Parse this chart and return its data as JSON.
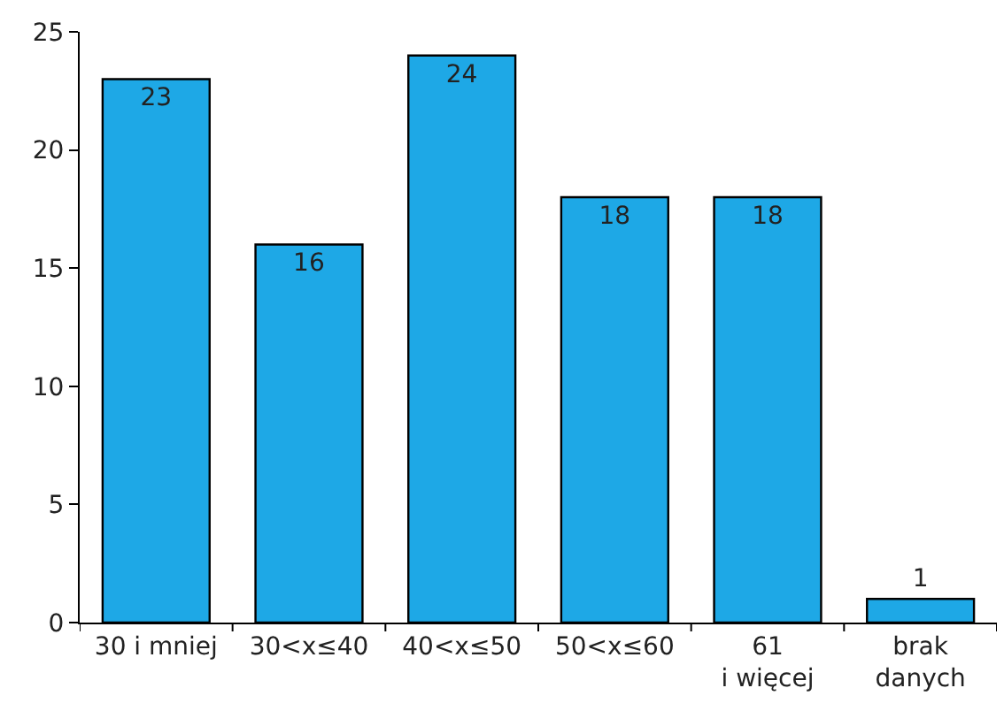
{
  "chart_data": {
    "type": "bar",
    "categories": [
      "30 i mniej",
      "30<x≤40",
      "40<x≤50",
      "50<x≤60",
      "61\ni więcej",
      "brak\ndanych"
    ],
    "values": [
      23,
      16,
      24,
      18,
      18,
      1
    ],
    "color": "#1ea8e6",
    "ylim": [
      0,
      25
    ],
    "yticks": [
      0,
      5,
      10,
      15,
      20,
      25
    ],
    "grid": false,
    "data_labels": true
  }
}
